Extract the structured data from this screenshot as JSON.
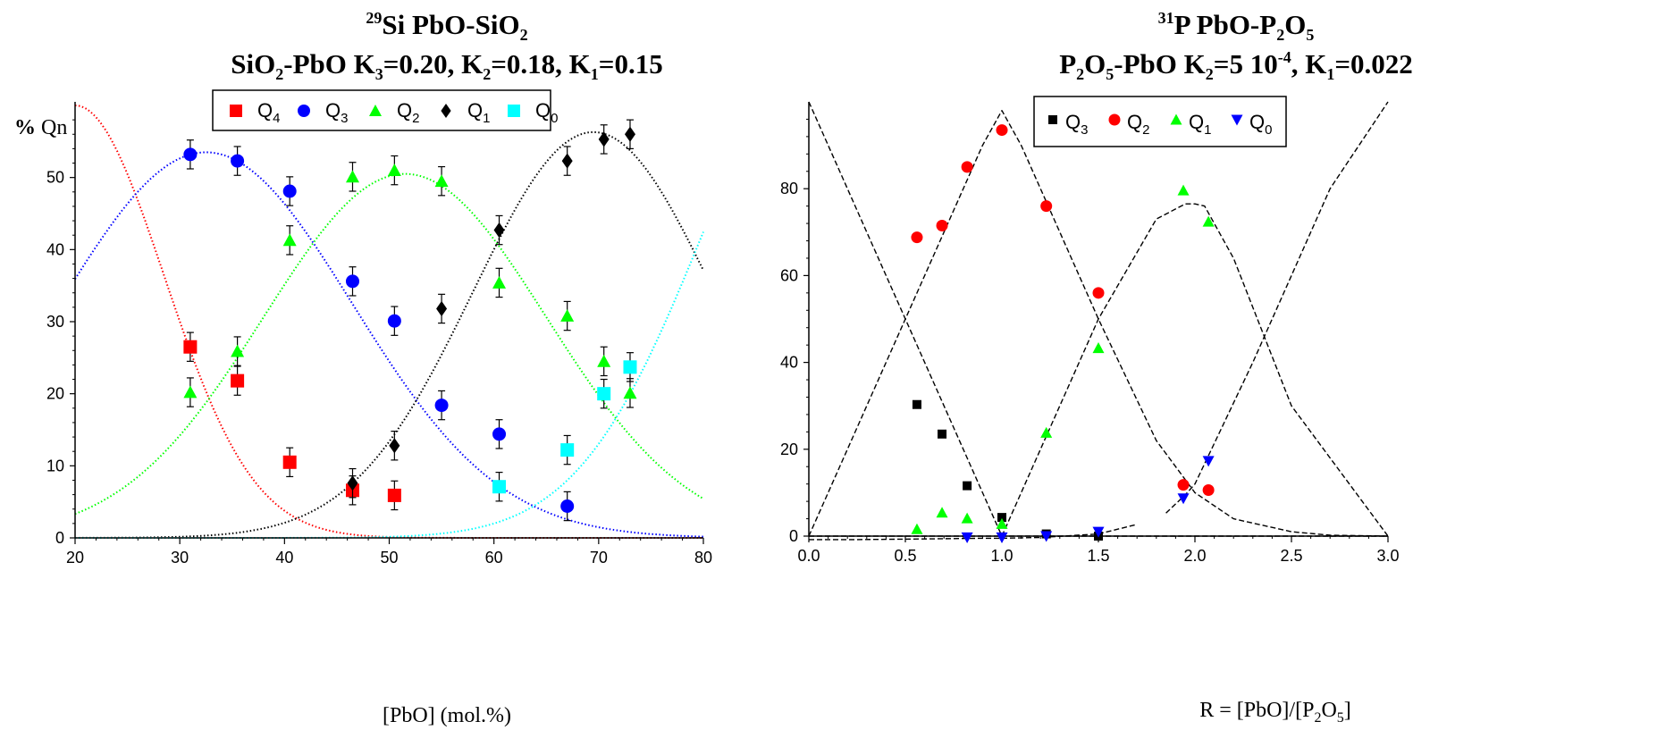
{
  "chart_data": [
    {
      "type": "scatter",
      "title_parts": {
        "sup": "29",
        "main": "Si PbO-SiO",
        "main_sub": "2",
        "line2_a": "SiO",
        "line2_a_sub": "2",
        "line2_b": "-PbO K",
        "k3_sub": "3",
        "k3_val": "=0.20, K",
        "k2_sub": "2",
        "k2_val": "=0.18, K",
        "k1_sub": "1",
        "k1_val": "=0.15"
      },
      "ylabel": "% Qn",
      "ylabel_bold": "%",
      "ylabel_rest": " Qn",
      "xlabel": "[PbO] (mol.%)",
      "xlim": [
        20,
        80
      ],
      "ylim": [
        0,
        60
      ],
      "xticks": [
        "20",
        "30",
        "40",
        "50",
        "60",
        "70",
        "80"
      ],
      "yticks": [
        "0",
        "10",
        "20",
        "30",
        "40",
        "50"
      ],
      "legend_position": "top-center",
      "series": [
        {
          "name": "Q4",
          "base": "Q",
          "sub": "4",
          "marker": "square",
          "color": "#ff0000",
          "x": [
            31,
            35.5,
            40.5,
            46.5,
            50.5
          ],
          "y": [
            26.5,
            21.8,
            10.5,
            6.6,
            5.9
          ],
          "err": [
            2.0,
            2.0,
            2.0,
            2.0,
            2.0
          ],
          "fit": {
            "mu": 20,
            "sigma": 8.5,
            "amp": 60,
            "color": "#ff0000"
          }
        },
        {
          "name": "Q3",
          "base": "Q",
          "sub": "3",
          "marker": "circle",
          "color": "#0000ff",
          "x": [
            31,
            35.5,
            40.5,
            46.5,
            50.5,
            55,
            60.5,
            67
          ],
          "y": [
            53.2,
            52.3,
            48.1,
            35.6,
            30.1,
            18.4,
            14.4,
            4.4
          ],
          "err": [
            2.0,
            2.0,
            2.0,
            2.0,
            2.0,
            2.0,
            2.0,
            2.0
          ],
          "fit": {
            "mu": 32.5,
            "sigma": 14,
            "amp": 53.5,
            "color": "#0000ff"
          }
        },
        {
          "name": "Q2",
          "base": "Q",
          "sub": "2",
          "marker": "triangle",
          "color": "#00ff00",
          "x": [
            31,
            35.5,
            40.5,
            46.5,
            50.5,
            55,
            60.5,
            67,
            70.5,
            73
          ],
          "y": [
            20.2,
            25.9,
            41.3,
            50.1,
            51.0,
            49.5,
            35.4,
            30.8,
            24.5,
            20.1
          ],
          "err": [
            2.0,
            2.0,
            2.0,
            2.0,
            2.0,
            2.0,
            2.0,
            2.0,
            2.0,
            2.0
          ],
          "fit": {
            "mu": 51.5,
            "sigma": 13.5,
            "amp": 50.5,
            "color": "#00ff00"
          }
        },
        {
          "name": "Q1",
          "base": "Q",
          "sub": "1",
          "marker": "diamond",
          "color": "#000000",
          "x": [
            46.5,
            50.5,
            55,
            60.5,
            67,
            70.5,
            73
          ],
          "y": [
            7.6,
            12.8,
            31.8,
            42.7,
            52.3,
            55.3,
            56.0
          ],
          "err": [
            2.0,
            2.0,
            2.0,
            2.0,
            2.0,
            2.0,
            2.0
          ],
          "fit": {
            "mu": 69.5,
            "sigma": 11.5,
            "amp": 56.3,
            "color": "#000000"
          }
        },
        {
          "name": "Q0",
          "base": "Q",
          "sub": "0",
          "marker": "square",
          "color": "#00ffff",
          "x": [
            60.5,
            67,
            70.5,
            73
          ],
          "y": [
            7.1,
            12.2,
            20.0,
            23.7
          ],
          "err": [
            2.0,
            2.0,
            2.0,
            2.0
          ],
          "fit": {
            "mu": 92,
            "sigma": 12,
            "amp": 70,
            "color": "#00ffff"
          }
        }
      ]
    },
    {
      "type": "scatter",
      "title_parts": {
        "sup": "31",
        "main": "P PbO-P",
        "main_sub1": "2",
        "main_o": "O",
        "main_sub2": "5",
        "line2_a": "P",
        "line2_a_sub1": "2",
        "line2_a_o": "O",
        "line2_a_sub2": "5",
        "line2_b": "-PbO K",
        "k2_sub": "2",
        "k2_val": "=5 10",
        "k2_exp": "-4",
        "k1_sep": ", K",
        "k1_sub": "1",
        "k1_val": "=0.022"
      },
      "xlabel_parts": {
        "a": "R = [PbO]/[P",
        "sub1": "2",
        "o": "O",
        "sub2": "5",
        "end": "]"
      },
      "xlim": [
        0,
        3
      ],
      "ylim": [
        0,
        100
      ],
      "xticks": [
        "0.0",
        "0.5",
        "1.0",
        "1.5",
        "2.0",
        "2.5",
        "3.0"
      ],
      "yticks": [
        "0",
        "20",
        "40",
        "60",
        "80"
      ],
      "legend_position": "top-center",
      "series": [
        {
          "name": "Q3",
          "base": "Q",
          "sub": "3",
          "marker": "square",
          "color": "#000000",
          "x": [
            0.56,
            0.69,
            0.82,
            1.0,
            1.23,
            1.5
          ],
          "y": [
            30.3,
            23.5,
            11.6,
            4.3,
            0.5,
            0.0
          ]
        },
        {
          "name": "Q2",
          "base": "Q",
          "sub": "2",
          "marker": "circle",
          "color": "#ff0000",
          "x": [
            0.56,
            0.69,
            0.82,
            1.0,
            1.23,
            1.5,
            1.94,
            2.07
          ],
          "y": [
            68.8,
            71.5,
            85.0,
            93.5,
            76.0,
            56.0,
            11.8,
            10.6
          ]
        },
        {
          "name": "Q1",
          "base": "Q",
          "sub": "1",
          "marker": "triangle",
          "color": "#00ff00",
          "x": [
            0.56,
            0.69,
            0.82,
            1.0,
            1.23,
            1.5,
            1.94,
            2.07
          ],
          "y": [
            1.6,
            5.4,
            4.1,
            2.8,
            23.8,
            43.3,
            79.6,
            72.4
          ]
        },
        {
          "name": "Q0",
          "base": "Q",
          "sub": "0",
          "marker": "triangle-down",
          "color": "#0000ff",
          "x": [
            0.82,
            1.0,
            1.23,
            1.5,
            1.94,
            2.07
          ],
          "y": [
            -0.3,
            -0.3,
            0.0,
            1.0,
            8.7,
            17.3
          ]
        }
      ],
      "fits": [
        {
          "name": "Q3 fit",
          "x": [
            0,
            0.5,
            1.0,
            1.5,
            3.0
          ],
          "y": [
            100,
            50,
            0,
            0,
            0
          ]
        },
        {
          "name": "Q2 fit",
          "x": [
            0,
            0.5,
            0.9,
            1.0,
            1.1,
            1.5,
            1.8,
            2.0,
            2.2,
            2.5,
            2.7,
            3.0
          ],
          "y": [
            0,
            50,
            90,
            98,
            90,
            50,
            22,
            10,
            4,
            1,
            0.2,
            0
          ]
        },
        {
          "name": "Q1 fit",
          "x": [
            0,
            1.0,
            1.5,
            1.8,
            1.95,
            2.0,
            2.05,
            2.2,
            2.5,
            3.0
          ],
          "y": [
            0,
            0,
            50,
            73,
            76.5,
            76.5,
            76,
            64,
            30,
            0
          ]
        },
        {
          "name": "Q0 fit a",
          "x": [
            0,
            0.25,
            0.5,
            0.9,
            1.0,
            1.2,
            1.5,
            1.7
          ],
          "y": [
            -0.8,
            -0.8,
            -0.7,
            -0.5,
            -0.5,
            -0.3,
            0.5,
            2.7
          ]
        },
        {
          "name": "Q0 fit b",
          "x": [
            1.85,
            1.95,
            2.0,
            2.3,
            2.7,
            3.0
          ],
          "y": [
            5.3,
            9.5,
            12,
            40,
            80,
            100
          ]
        }
      ]
    }
  ]
}
